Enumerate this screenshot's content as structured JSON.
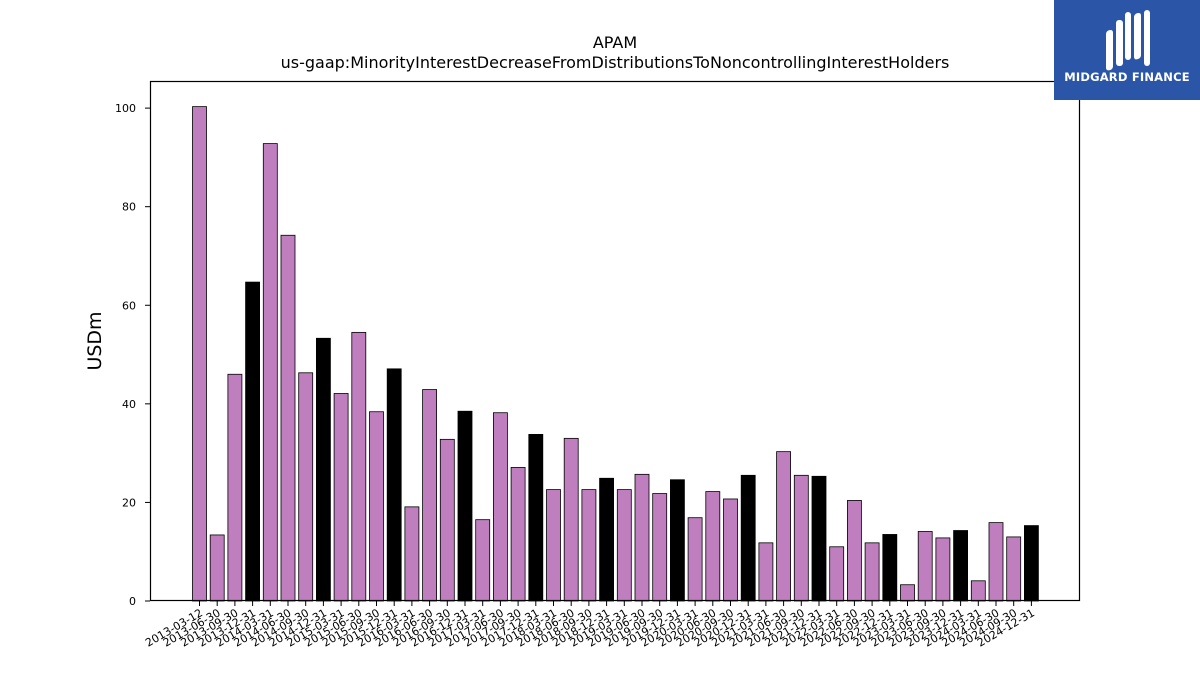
{
  "logo": {
    "text": "MIDGARD FINANCE",
    "icon": "midgard-mark-icon",
    "background": "#2b56a8"
  },
  "chart_data": {
    "type": "bar",
    "title": "APAM",
    "subtitle": "us-gaap:MinorityInterestDecreaseFromDistributionsToNoncontrollingInterestHolders",
    "xlabel": "",
    "ylabel": "USDm",
    "ylim": [
      0,
      105.5
    ],
    "yticks": [
      0,
      20,
      40,
      60,
      80,
      100
    ],
    "grid": false,
    "colors": {
      "quarter": "#bf7fbf",
      "year_end": "#000000",
      "edge": "#000000"
    },
    "categories": [
      "2013-03-12",
      "2013-06-30",
      "2013-09-30",
      "2013-12-31",
      "2014-03-31",
      "2014-06-30",
      "2014-09-30",
      "2014-12-31",
      "2015-03-31",
      "2015-06-30",
      "2015-09-30",
      "2015-12-31",
      "2016-03-31",
      "2016-06-30",
      "2016-09-30",
      "2016-12-31",
      "2017-03-31",
      "2017-06-30",
      "2017-09-30",
      "2017-12-31",
      "2018-03-31",
      "2018-06-30",
      "2018-09-30",
      "2018-12-31",
      "2019-03-31",
      "2019-06-30",
      "2019-09-30",
      "2019-12-31",
      "2020-03-31",
      "2020-06-30",
      "2020-09-30",
      "2020-12-31",
      "2021-03-31",
      "2021-06-30",
      "2021-09-30",
      "2021-12-31",
      "2022-03-31",
      "2022-06-30",
      "2022-09-30",
      "2022-12-31",
      "2023-03-31",
      "2023-06-30",
      "2023-09-30",
      "2023-12-31",
      "2024-03-31",
      "2024-06-30",
      "2024-09-30",
      "2024-12-31"
    ],
    "values": [
      100.3,
      13.4,
      46.0,
      64.7,
      92.8,
      74.2,
      46.3,
      53.3,
      42.1,
      54.5,
      38.4,
      47.1,
      19.1,
      42.9,
      32.8,
      38.5,
      16.5,
      38.2,
      27.1,
      33.8,
      22.6,
      33.0,
      22.6,
      24.9,
      22.6,
      25.7,
      21.8,
      24.6,
      16.9,
      22.2,
      20.7,
      25.5,
      11.8,
      30.3,
      25.5,
      25.3,
      11.0,
      20.4,
      11.8,
      13.5,
      3.3,
      14.1,
      12.8,
      14.3,
      4.1,
      15.9,
      13.0,
      15.3
    ],
    "highlight": [
      false,
      false,
      false,
      true,
      false,
      false,
      false,
      true,
      false,
      false,
      false,
      true,
      false,
      false,
      false,
      true,
      false,
      false,
      false,
      true,
      false,
      false,
      false,
      true,
      false,
      false,
      false,
      true,
      false,
      false,
      false,
      true,
      false,
      false,
      false,
      true,
      false,
      false,
      false,
      true,
      false,
      false,
      false,
      true,
      false,
      false,
      false,
      true
    ]
  }
}
